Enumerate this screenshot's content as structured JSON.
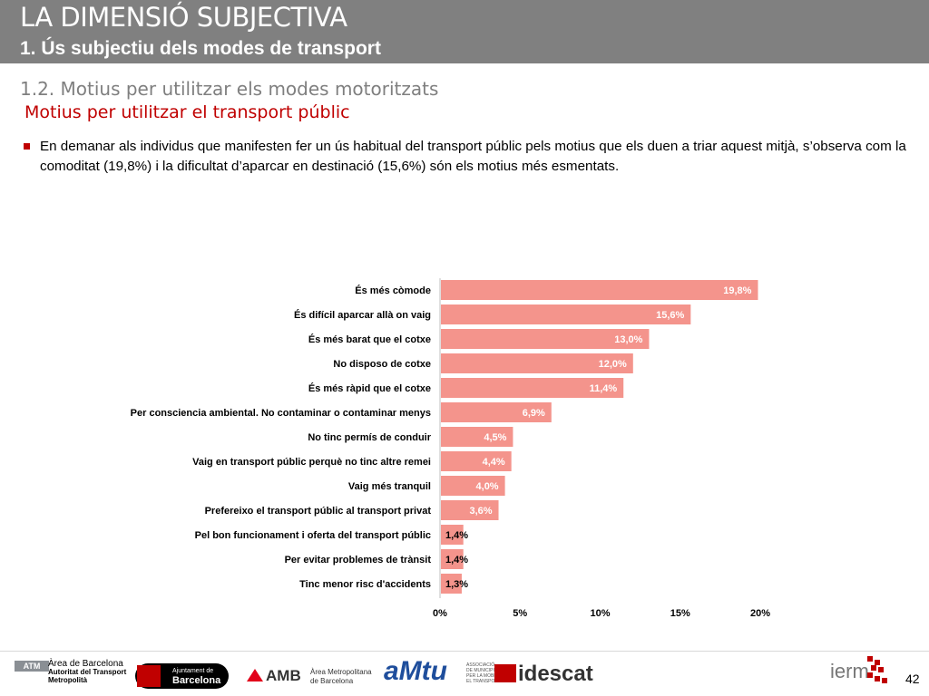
{
  "header": {
    "title": "LA DIMENSIÓ SUBJECTIVA",
    "subtitle": "1. Ús subjectiu dels modes de transport"
  },
  "section_heading": "1.2. Motius per utilitzar els modes motoritzats",
  "subsection_heading": "Motius per utilitzar el transport públic",
  "bullet_text": "En demanar als individus que manifesten fer un ús habitual del transport públic pels motius que els duen a triar aquest mitjà, s’observa com la comoditat (19,8%) i la dificultat d’aparcar en destinació (15,6%) són els motius més esmentats.",
  "chart_data": {
    "type": "bar",
    "orientation": "horizontal",
    "categories": [
      "És més còmode",
      "És difícil aparcar allà on vaig",
      "És més barat que el cotxe",
      "No disposo de cotxe",
      "És més ràpid que el cotxe",
      "Per consciencia ambiental. No contaminar o contaminar menys",
      "No tinc permís de conduir",
      "Vaig en transport públic perquè no tinc altre remei",
      "Vaig més tranquil",
      "Prefereixo el transport públic al transport privat",
      "Pel bon funcionament i oferta del transport públic",
      "Per evitar problemes de trànsit",
      "Tinc menor risc d'accidents"
    ],
    "values": [
      19.8,
      15.6,
      13.0,
      12.0,
      11.4,
      6.9,
      4.5,
      4.4,
      4.0,
      3.6,
      1.4,
      1.4,
      1.3
    ],
    "value_labels": [
      "19,8%",
      "15,6%",
      "13,0%",
      "12,0%",
      "11,4%",
      "6,9%",
      "4,5%",
      "4,4%",
      "4,0%",
      "3,6%",
      "1,4%",
      "1,4%",
      "1,3%"
    ],
    "xticks": [
      "0%",
      "5%",
      "10%",
      "15%",
      "20%"
    ],
    "xlim": [
      0,
      20
    ],
    "bar_color": "#f4948c",
    "grid": false
  },
  "footer": {
    "atm_label": "ATM",
    "atm_lines": [
      "Àrea de Barcelona",
      "Autoritat del Transport",
      "Metropolità"
    ],
    "ajuntament_line1": "Ajuntament de",
    "ajuntament_line2": "Barcelona",
    "amb_label": "AMB",
    "amb_lines": [
      "Àrea Metropolitana",
      "de Barcelona"
    ],
    "amtu_label": "aMtu",
    "amtu_lines": [
      "ASSOCIACIÓ",
      "DE MUNICIPIS",
      "PER LA MOBILITAT I",
      "EL TRANSPORT URBÀ"
    ],
    "idescat_label": "idescat",
    "iermb_label": "ierm",
    "page_number": "42"
  }
}
